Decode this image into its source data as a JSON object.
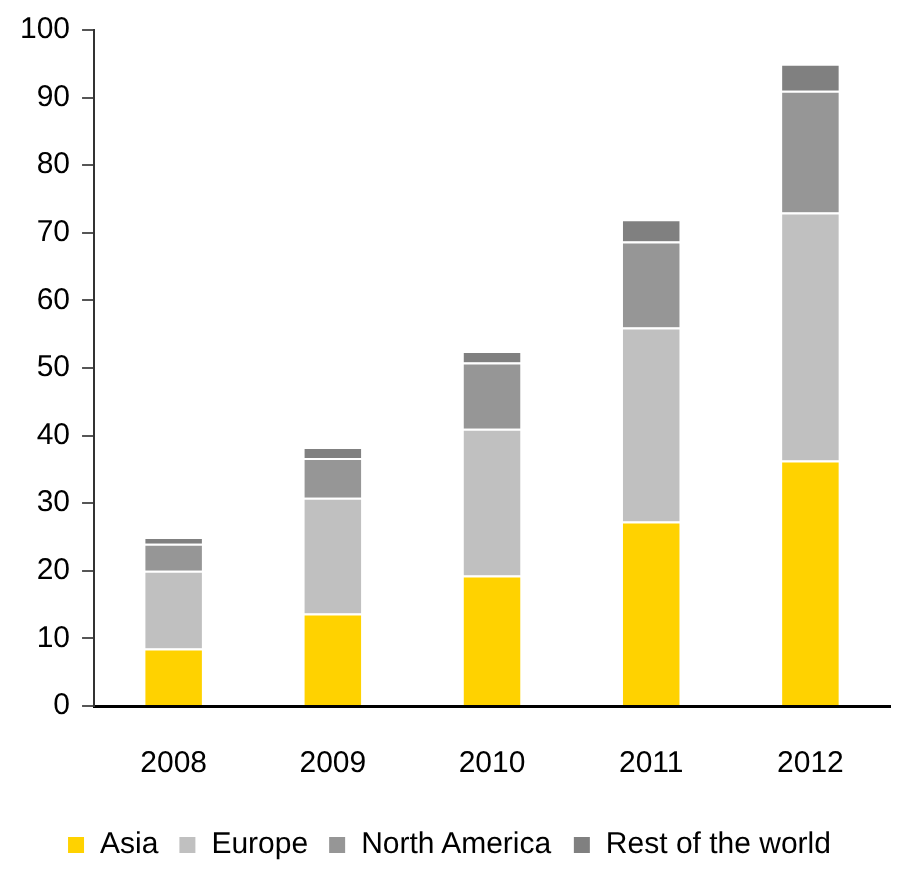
{
  "chart_data": {
    "type": "bar",
    "stacked": true,
    "categories": [
      "2008",
      "2009",
      "2010",
      "2011",
      "2012"
    ],
    "series": [
      {
        "name": "Asia",
        "color": "#ffd200",
        "values": [
          8.5,
          13.7,
          19.3,
          27.3,
          36.3
        ]
      },
      {
        "name": "Europe",
        "color": "#c0c0c0",
        "values": [
          11.5,
          17.1,
          21.7,
          28.7,
          36.7
        ]
      },
      {
        "name": "North America",
        "color": "#969696",
        "values": [
          4,
          5.9,
          9.8,
          12.7,
          18
        ]
      },
      {
        "name": "Rest of the world",
        "color": "#808080",
        "values": [
          1,
          1.6,
          1.7,
          3.3,
          4
        ]
      }
    ],
    "ylim": [
      0,
      100
    ],
    "yticks": [
      0,
      10,
      20,
      30,
      40,
      50,
      60,
      70,
      80,
      90,
      100
    ],
    "grid": false,
    "legend": "bottom"
  }
}
